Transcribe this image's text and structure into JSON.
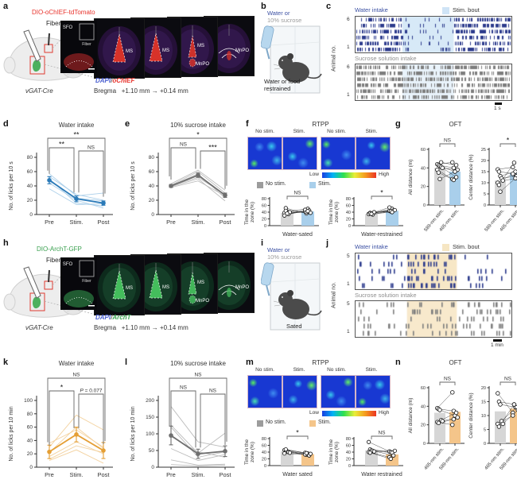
{
  "colors": {
    "water_text": "#3b50a3",
    "sucrose_text": "#8f8f8f",
    "navy_tick": "#2b3a8c",
    "gray_tick": "#7d7d7d",
    "stim_blue": "#d7e9f7",
    "stim_orange": "#f7e7c6",
    "bar_gray": "#d6d6d6",
    "bar_blue": "#a9cfeb",
    "bar_orange": "#f4c58a",
    "mean_blue": "#2a7ab8",
    "light_blue": "#a9cde9",
    "mean_gray": "#6f6f6f",
    "light_gray": "#b9b9b9",
    "mean_orange": "#e59f35",
    "light_orange": "#f2d09b",
    "virus_red": "#e8332c",
    "virus_green": "#3aa04f",
    "dapi_blue": "#4a5fd0"
  },
  "panels": {
    "a": {
      "label": "a",
      "virus": "DIO-oChIEF-tdTomato",
      "fiber": "Fiber",
      "inset_region": "SFO",
      "inset_fiber": "Fiber",
      "slices": [
        [
          "MS"
        ],
        [
          "MS"
        ],
        [
          "MS",
          "MnPO"
        ],
        [
          "MnPO"
        ]
      ],
      "stain_prefix": "DAPI",
      "stain_sep": "/",
      "stain_name": "oChIEF",
      "mouse_line": "vGAT-Cre",
      "bregma_label": "Bregma",
      "bregma_from": "+1.10 mm",
      "bregma_arrow": "→",
      "bregma_to": "+0.14 mm"
    },
    "b": {
      "label": "b",
      "line1": "Water or",
      "line2": "10% sucrose",
      "caption": "Water or food restrained"
    },
    "c": {
      "label": "c"
    },
    "d": {
      "label": "d"
    },
    "e": {
      "label": "e"
    },
    "f": {
      "label": "f"
    },
    "g": {
      "label": "g"
    },
    "h": {
      "label": "h",
      "virus": "DIO-ArchT-GFP",
      "fiber": "Fiber",
      "inset_region": "SFO",
      "inset_fiber": "Fiber",
      "slices": [
        [
          "MS"
        ],
        [
          "MS"
        ],
        [
          "MS",
          "MnPO"
        ],
        [
          "MnPO"
        ]
      ],
      "stain_prefix": "DAPI",
      "stain_sep": "/",
      "stain_name": "ArchT",
      "mouse_line": "vGAT-Cre",
      "bregma_label": "Bregma",
      "bregma_from": "+1.10 mm",
      "bregma_arrow": "→",
      "bregma_to": "+0.14 mm"
    },
    "i": {
      "label": "i",
      "line1": "Water or",
      "line2": "10% sucrose",
      "caption": "Sated"
    },
    "j": {
      "label": "j"
    },
    "k": {
      "label": "k"
    },
    "l": {
      "label": "l"
    },
    "m": {
      "label": "m"
    },
    "n": {
      "label": "n"
    }
  },
  "chart_data": {
    "c": {
      "type": "raster",
      "title": "Water intake",
      "legend": "Stim. bout",
      "ylabel": "Animal no.",
      "animals_top": "6",
      "animals_bottom": "1",
      "rows": 6,
      "subtitle2": "Sucrose solution intake",
      "scale_label": "1 s",
      "stim_window_frac": [
        0.3,
        0.63
      ],
      "water_density": [
        0.45,
        0.1,
        0.45
      ],
      "sucrose_density": [
        0.55,
        0.5,
        0.55
      ]
    },
    "j": {
      "type": "raster",
      "title": "Water intake",
      "legend": "Stim. bout",
      "ylabel": "Animal no.",
      "animals_top": "5",
      "animals_bottom": "1",
      "rows": 5,
      "subtitle2": "Sucrose solution intake",
      "scale_label": "1 min",
      "stim_window_frac": [
        0.33,
        0.65
      ],
      "water_density": [
        0.07,
        0.2,
        0.07
      ],
      "sucrose_density": [
        0.13,
        0.1,
        0.13
      ]
    },
    "d": {
      "type": "line",
      "title": "Water intake",
      "ylabel": "No. of licks per 10 s",
      "categories": [
        "Pre",
        "Stim.",
        "Post"
      ],
      "ylim": [
        0,
        80
      ],
      "yticks": [
        0,
        20,
        40,
        60,
        80
      ],
      "mean": [
        48,
        22,
        16
      ],
      "sem": [
        5,
        4,
        3
      ],
      "individuals": [
        [
          57,
          26,
          30
        ],
        [
          53,
          28,
          20
        ],
        [
          50,
          16,
          12
        ],
        [
          47,
          23,
          19
        ],
        [
          44,
          20,
          9
        ],
        [
          36,
          14,
          15
        ]
      ],
      "sig": [
        {
          "from": "Pre",
          "to": "Stim.",
          "label": "**"
        },
        {
          "from": "Stim.",
          "to": "Post",
          "label": "NS"
        },
        {
          "from": "Pre",
          "to": "Post",
          "label": "**"
        }
      ]
    },
    "e": {
      "type": "line",
      "title": "10% sucrose intake",
      "ylabel": "No. of licks per 10 s",
      "categories": [
        "Pre",
        "Stim.",
        "Post"
      ],
      "ylim": [
        0,
        80
      ],
      "yticks": [
        0,
        20,
        40,
        60,
        80
      ],
      "mean": [
        40,
        55,
        27
      ],
      "sem": [
        2,
        3,
        3
      ],
      "individuals": [
        [
          43,
          62,
          34
        ],
        [
          41,
          60,
          30
        ],
        [
          40,
          57,
          23
        ],
        [
          40,
          52,
          28
        ],
        [
          39,
          50,
          19
        ],
        [
          38,
          47,
          26
        ]
      ],
      "sig": [
        {
          "from": "Pre",
          "to": "Stim.",
          "label": "NS"
        },
        {
          "from": "Stim.",
          "to": "Post",
          "label": "***"
        },
        {
          "from": "Pre",
          "to": "Post",
          "label": "*"
        }
      ]
    },
    "f": {
      "type": "bar",
      "title": "RTPP",
      "heat_labels": [
        "No stim.",
        "Stim.",
        "No stim.",
        "Stim."
      ],
      "colorbar": {
        "low": "Low",
        "high": "High"
      },
      "legend": [
        {
          "label": "No stim."
        },
        {
          "label": "Stim."
        }
      ],
      "charts": [
        {
          "ylabel_lines": [
            "Time in the",
            "zone (%)"
          ],
          "ylim": [
            0,
            80
          ],
          "yticks": [
            0,
            20,
            40,
            60,
            80
          ],
          "condition": "Water-sated",
          "bars": [
            38,
            42
          ],
          "sig": "NS",
          "pairs": [
            [
              38,
              42
            ],
            [
              52,
              36
            ],
            [
              42,
              50
            ],
            [
              34,
              45
            ],
            [
              40,
              38
            ],
            [
              30,
              47
            ],
            [
              44,
              40
            ],
            [
              36,
              43
            ]
          ]
        },
        {
          "ylabel_lines": [
            "Time in the",
            "zone (%)"
          ],
          "ylim": [
            0,
            80
          ],
          "yticks": [
            0,
            20,
            40,
            60,
            80
          ],
          "condition": "Water-restrained",
          "bars": [
            35,
            44
          ],
          "sig": "*",
          "pairs": [
            [
              35,
              44
            ],
            [
              38,
              42
            ],
            [
              36,
              50
            ],
            [
              33,
              45
            ],
            [
              40,
              46
            ],
            [
              34,
              54
            ],
            [
              37,
              43
            ],
            [
              35,
              40
            ]
          ]
        }
      ]
    },
    "g": {
      "type": "bar",
      "title": "OFT",
      "charts": [
        {
          "ylabel": "All distance (m)",
          "ylim": [
            0,
            60
          ],
          "yticks": [
            0,
            20,
            40,
            60
          ],
          "categories": [
            "589-nm stim.",
            "465-nm stim."
          ],
          "bars": [
            40,
            36
          ],
          "sig": "NS",
          "pairs": [
            [
              44,
              46
            ],
            [
              43,
              40
            ],
            [
              42,
              36
            ],
            [
              41,
              30
            ],
            [
              40,
              38
            ],
            [
              38,
              28
            ],
            [
              35,
              27
            ],
            [
              28,
              36
            ],
            [
              46,
              43
            ]
          ]
        },
        {
          "ylabel": "Center distance (%)",
          "ylim": [
            0,
            25
          ],
          "yticks": [
            0,
            5,
            10,
            15,
            20,
            25
          ],
          "categories": [
            "589-nm stim.",
            "465-nm stim."
          ],
          "bars": [
            11,
            14.5
          ],
          "sig": "*",
          "pairs": [
            [
              16,
              17
            ],
            [
              15,
              14
            ],
            [
              13,
              15
            ],
            [
              12,
              13
            ],
            [
              11,
              12
            ],
            [
              10,
              14
            ],
            [
              9,
              19
            ],
            [
              6,
              12
            ]
          ]
        }
      ]
    },
    "k": {
      "type": "line",
      "title": "Water intake",
      "ylabel": "No. of licks per 10 min",
      "categories": [
        "Pre",
        "Stim.",
        "Post"
      ],
      "ylim": [
        0,
        100
      ],
      "yticks": [
        0,
        20,
        40,
        60,
        80,
        100
      ],
      "mean": [
        23,
        49,
        25
      ],
      "sem": [
        10,
        11,
        12
      ],
      "individuals": [
        [
          10,
          26,
          6
        ],
        [
          16,
          38,
          20
        ],
        [
          22,
          60,
          28
        ],
        [
          30,
          78,
          56
        ],
        [
          36,
          56,
          30
        ],
        [
          12,
          32,
          22
        ]
      ],
      "sig": [
        {
          "from": "Pre",
          "to": "Stim.",
          "label": "*"
        },
        {
          "from": "Stim.",
          "to": "Post",
          "label": "P = 0.077"
        },
        {
          "from": "Pre",
          "to": "Post",
          "label": "NS"
        }
      ]
    },
    "l": {
      "type": "line",
      "title": "10% sucrose intake",
      "ylabel": "No. of licks per 10 min",
      "categories": [
        "Pre",
        "Stim.",
        "Post"
      ],
      "ylim": [
        0,
        200
      ],
      "yticks": [
        0,
        50,
        100,
        150,
        200
      ],
      "mean": [
        95,
        40,
        48
      ],
      "sem": [
        28,
        14,
        16
      ],
      "individuals": [
        [
          182,
          76,
          60
        ],
        [
          126,
          42,
          102
        ],
        [
          120,
          30,
          46
        ],
        [
          92,
          46,
          30
        ],
        [
          56,
          20,
          38
        ],
        [
          22,
          6,
          9
        ],
        [
          8,
          4,
          6
        ]
      ],
      "sig": [
        {
          "from": "Pre",
          "to": "Stim.",
          "label": "NS"
        },
        {
          "from": "Stim.",
          "to": "Post",
          "label": "NS"
        },
        {
          "from": "Pre",
          "to": "Post",
          "label": "NS"
        }
      ]
    },
    "m": {
      "type": "bar",
      "title": "RTPP",
      "heat_labels": [
        "No stim.",
        "Stim.",
        "No stim.",
        "Stim."
      ],
      "colorbar": {
        "low": "Low",
        "high": "High"
      },
      "legend": [
        {
          "label": "No stim."
        },
        {
          "label": "Stim."
        }
      ],
      "charts": [
        {
          "ylabel_lines": [
            "Time in the",
            "zone (%)"
          ],
          "ylim": [
            0,
            80
          ],
          "yticks": [
            0,
            20,
            40,
            60,
            80
          ],
          "condition": "Water sated",
          "bars": [
            42,
            34
          ],
          "sig": "*",
          "pairs": [
            [
              46,
              38
            ],
            [
              44,
              32
            ],
            [
              42,
              36
            ],
            [
              40,
              30
            ],
            [
              38,
              35
            ],
            [
              36,
              33
            ],
            [
              48,
              37
            ]
          ]
        },
        {
          "ylabel_lines": [
            "Time in the",
            "zone (%)"
          ],
          "ylim": [
            0,
            80
          ],
          "yticks": [
            0,
            20,
            40,
            60,
            80
          ],
          "condition": "Water restrained",
          "bars": [
            45,
            33
          ],
          "sig": "NS",
          "pairs": [
            [
              70,
              42
            ],
            [
              48,
              40
            ],
            [
              45,
              38
            ],
            [
              44,
              30
            ],
            [
              42,
              44
            ],
            [
              40,
              25
            ],
            [
              38,
              20
            ]
          ]
        }
      ]
    },
    "n": {
      "type": "bar",
      "title": "OFT",
      "charts": [
        {
          "ylabel": "All distance (m)",
          "ylim": [
            0,
            60
          ],
          "yticks": [
            0,
            20,
            40,
            60
          ],
          "categories": [
            "465-nm stim.",
            "589-nm stim."
          ],
          "bars": [
            33,
            34
          ],
          "sig": "NS",
          "pairs": [
            [
              38,
              55
            ],
            [
              37,
              35
            ],
            [
              36,
              30
            ],
            [
              25,
              33
            ],
            [
              24,
              28
            ],
            [
              23,
              20
            ],
            [
              22,
              26
            ]
          ]
        },
        {
          "ylabel": "Center distance (%)",
          "ylim": [
            0,
            20
          ],
          "yticks": [
            0,
            5,
            10,
            15,
            20
          ],
          "categories": [
            "465-nm stim.",
            "589-nm stim."
          ],
          "bars": [
            11.5,
            12.5
          ],
          "sig": "NS",
          "pairs": [
            [
              18,
              11
            ],
            [
              15,
              14
            ],
            [
              14,
              13
            ],
            [
              8,
              13
            ],
            [
              7,
              12
            ],
            [
              7,
              10
            ],
            [
              6,
              14
            ]
          ]
        }
      ]
    }
  }
}
